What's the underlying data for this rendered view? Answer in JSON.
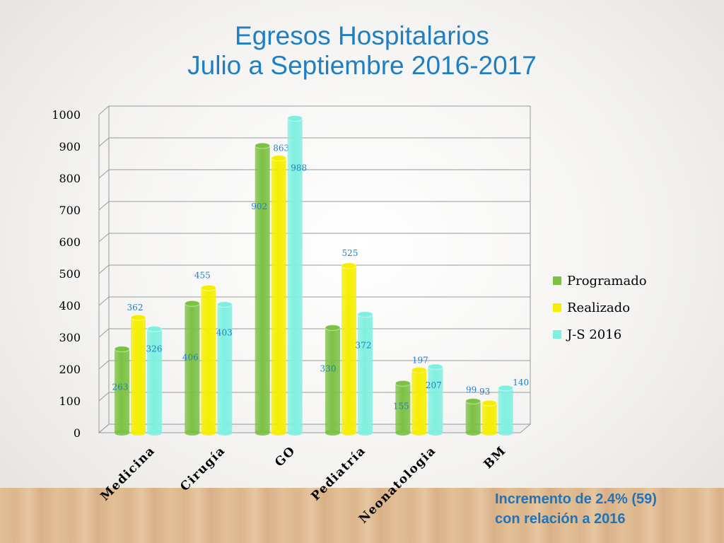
{
  "slide": {
    "title_line1": "Egresos Hospitalarios",
    "title_line2": "Julio a Septiembre 2016-2017",
    "note_line1": "Incremento de 2.4% (59)",
    "note_line2": "con relación a 2016"
  },
  "chart_data": {
    "type": "bar",
    "categories": [
      "Medicina",
      "Cirugía",
      "GO",
      "Pediatría",
      "Neonatologia",
      "BM"
    ],
    "series": [
      {
        "name": "Programado",
        "values": [
          263,
          406,
          902,
          330,
          155,
          99
        ],
        "color": "#7cc144"
      },
      {
        "name": "Realizado",
        "values": [
          362,
          455,
          863,
          525,
          197,
          93
        ],
        "color": "#f5ee00"
      },
      {
        "name": "J-S 2016",
        "values": [
          326,
          403,
          988,
          372,
          207,
          140
        ],
        "color": "#7ff0e0"
      }
    ],
    "yticks": [
      0,
      100,
      200,
      300,
      400,
      500,
      600,
      700,
      800,
      900,
      1000
    ],
    "ylim": [
      0,
      1000
    ],
    "grid": true,
    "legend_position": "right",
    "label_color": "#1f7fc4"
  }
}
